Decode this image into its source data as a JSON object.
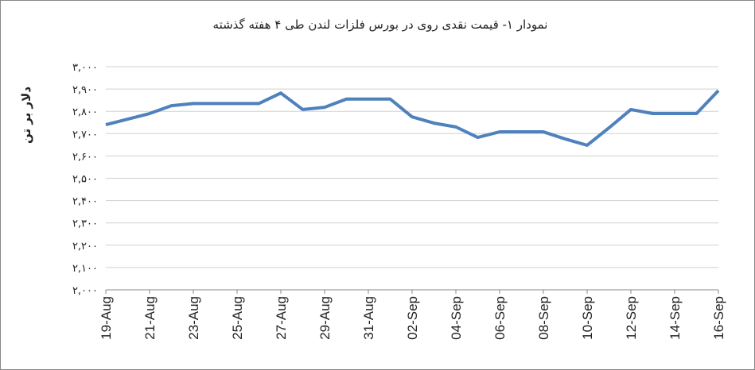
{
  "chart_data": {
    "type": "line",
    "title": "نمودار ۱- قیمت نقدی روی  در بورس فلزات لندن طی ۴ هفته گذشته",
    "y_label": "دلار بر تن",
    "categories": [
      "19-Aug",
      null,
      "21-Aug",
      null,
      "23-Aug",
      null,
      "25-Aug",
      null,
      "27-Aug",
      null,
      "29-Aug",
      null,
      "31-Aug",
      null,
      "02-Sep",
      null,
      "04-Sep",
      null,
      "06-Sep",
      null,
      "08-Sep",
      null,
      "10-Sep",
      null,
      "12-Sep",
      null,
      "14-Sep",
      null,
      "16-Sep"
    ],
    "series": [
      {
        "name": "قیمت نقدی روی",
        "color": "#4f81bd",
        "values": [
          2740,
          2765,
          2790,
          2825,
          2835,
          2835,
          2835,
          2835,
          2882,
          2808,
          2818,
          2855,
          2855,
          2855,
          2775,
          2747,
          2730,
          2683,
          2708,
          2708,
          2708,
          2676,
          2648,
          2726,
          2808,
          2790,
          2790,
          2790,
          2893
        ]
      }
    ],
    "ylim": [
      2000,
      3000
    ],
    "yticks": [
      {
        "value": 2000,
        "label": "۲,۰۰۰"
      },
      {
        "value": 2100,
        "label": "۲,۱۰۰"
      },
      {
        "value": 2200,
        "label": "۲,۲۰۰"
      },
      {
        "value": 2300,
        "label": "۲,۳۰۰"
      },
      {
        "value": 2400,
        "label": "۲,۴۰۰"
      },
      {
        "value": 2500,
        "label": "۲,۵۰۰"
      },
      {
        "value": 2600,
        "label": "۲,۶۰۰"
      },
      {
        "value": 2700,
        "label": "۲,۷۰۰"
      },
      {
        "value": 2800,
        "label": "۲,۸۰۰"
      },
      {
        "value": 2900,
        "label": "۲,۹۰۰"
      },
      {
        "value": 3000,
        "label": "۳,۰۰۰"
      }
    ],
    "grid": true
  }
}
